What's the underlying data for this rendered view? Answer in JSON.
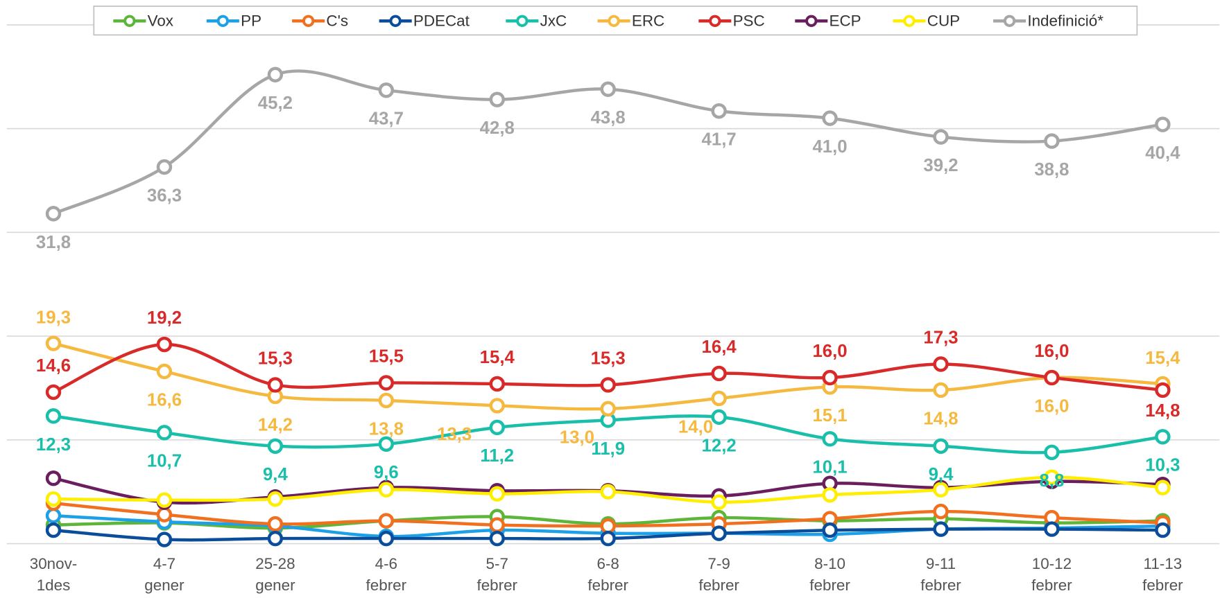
{
  "chart_data": {
    "type": "line",
    "categories": [
      "30nov-\n1des",
      "4-7\ngener",
      "25-28\ngener",
      "4-6\nfebrer",
      "5-7\nfebrer",
      "6-8\nfebrer",
      "7-9\nfebrer",
      "8-10\nfebrer",
      "9-11\nfebrer",
      "10-12\nfebrer",
      "11-13\nfebrer"
    ],
    "ylim": [
      0,
      50
    ],
    "yticks": [
      0,
      10,
      20,
      30,
      40,
      50
    ],
    "grid": true,
    "legend": "top",
    "series": [
      {
        "name": "Vox",
        "color": "#5db63a",
        "values": [
          1.8,
          2.0,
          1.5,
          2.2,
          2.6,
          1.9,
          2.5,
          2.2,
          2.4,
          2.0,
          2.2
        ]
      },
      {
        "name": "PP",
        "color": "#1ea0e6",
        "values": [
          2.7,
          2.1,
          1.7,
          0.7,
          1.3,
          1.0,
          1.0,
          0.9,
          1.4,
          1.5,
          1.7
        ]
      },
      {
        "name": "C's",
        "color": "#f07020",
        "values": [
          3.9,
          2.8,
          1.9,
          2.2,
          1.8,
          1.7,
          1.9,
          2.4,
          3.1,
          2.5,
          2.0
        ]
      },
      {
        "name": "PDECat",
        "color": "#0a4d9a",
        "values": [
          1.3,
          0.4,
          0.5,
          0.5,
          0.5,
          0.5,
          1.0,
          1.3,
          1.4,
          1.4,
          1.3
        ]
      },
      {
        "name": "JxC",
        "color": "#1abfaa",
        "values": [
          12.3,
          10.7,
          9.4,
          9.6,
          11.2,
          11.9,
          12.2,
          10.1,
          9.4,
          8.8,
          10.3
        ],
        "value_labels": [
          "12,3",
          "10,7",
          "9,4",
          "9,6",
          "11,2",
          "11,9",
          "12,2",
          "10,1",
          "9,4",
          "8,8",
          "10,3"
        ]
      },
      {
        "name": "ERC",
        "color": "#f5b940",
        "values": [
          19.3,
          16.6,
          14.2,
          13.8,
          13.3,
          13.0,
          14.0,
          15.1,
          14.8,
          16.0,
          15.4
        ],
        "value_labels": [
          "19,3",
          "16,6",
          "14,2",
          "13,8",
          "13,3",
          "13,0",
          "14,0",
          "15,1",
          "14,8",
          "16,0",
          "15,4"
        ]
      },
      {
        "name": "PSC",
        "color": "#d92a2a",
        "values": [
          14.6,
          19.2,
          15.3,
          15.5,
          15.4,
          15.3,
          16.4,
          16.0,
          17.3,
          16.0,
          14.8
        ],
        "value_labels": [
          "14,6",
          "19,2",
          "15,3",
          "15,5",
          "15,4",
          "15,3",
          "16,4",
          "16,0",
          "17,3",
          "16,0",
          "14,8"
        ]
      },
      {
        "name": "ECP",
        "color": "#6a1e5e",
        "values": [
          6.3,
          4.0,
          4.5,
          5.4,
          5.1,
          5.1,
          4.6,
          5.8,
          5.4,
          6.0,
          5.7
        ]
      },
      {
        "name": "CUP",
        "color": "#ffee00",
        "values": [
          4.3,
          4.2,
          4.3,
          5.2,
          4.8,
          5.0,
          4.0,
          4.7,
          5.2,
          6.4,
          5.4
        ]
      },
      {
        "name": "Indefinició*",
        "color": "#a6a6a6",
        "values": [
          31.8,
          36.3,
          45.2,
          43.7,
          42.8,
          43.8,
          41.7,
          41.0,
          39.2,
          38.8,
          40.4
        ],
        "value_labels": [
          "31,8",
          "36,3",
          "45,2",
          "43,7",
          "42,8",
          "43,8",
          "41,7",
          "41,0",
          "39,2",
          "38,8",
          "40,4"
        ]
      }
    ]
  }
}
